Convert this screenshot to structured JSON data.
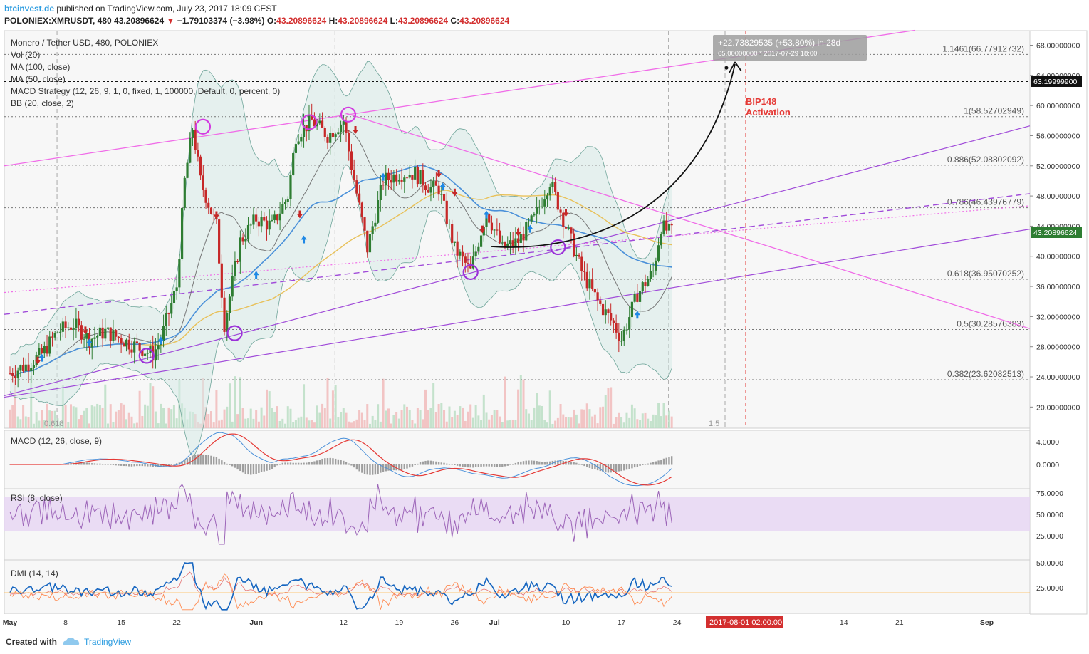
{
  "header": {
    "site": "btcinvest.de",
    "published": "published on TradingView.com, July 23, 2017 18:09 CEST",
    "symbol": "POLONIEX:XMRUSDT, 480",
    "price": "43.20896624",
    "change": "−1.79103374 (−3.98%)",
    "o_label": "O:",
    "o_value": "43.20896624",
    "h_label": "H:",
    "h_value": "43.20896624",
    "l_label": "L:",
    "l_value": "43.20896624",
    "c_label": "C:",
    "c_value": "43.20896624"
  },
  "legend": {
    "title": "Monero / Tether USD, 480, POLONIEX",
    "vol": "Vol (20)",
    "ma100": "MA (100, close)",
    "ma50": "MA (50, close)",
    "macd_strategy": "MACD Strategy (12, 26, 9, 1, 0, fixed, 1, 100000, Default, 0, percent, 0)",
    "bb": "BB (20, close, 2)"
  },
  "panels": {
    "macd_label": "MACD (12, 26, close, 9)",
    "rsi_label": "RSI (8, close)",
    "dmi_label": "DMI (14, 14)"
  },
  "annotations": {
    "measure_line1": "+22.73829535 (+53.80%) in 28d",
    "measure_line2": "65.00000000  *  2017-07-29  18:00",
    "bip148_line1": "BIP148",
    "bip148_line2": "Activation",
    "date_marker": "2017-08-01 02:00:00",
    "fib_ext_label": "1.5",
    "fib_low_label": "0.618"
  },
  "price_axis": {
    "ticks": [
      "68.00000000",
      "64.00000000",
      "60.00000000",
      "56.00000000",
      "52.00000000",
      "48.00000000",
      "44.00000000",
      "40.00000000",
      "36.00000000",
      "32.00000000",
      "28.00000000",
      "24.00000000",
      "20.00000000"
    ],
    "tick_values": [
      68,
      64,
      60,
      56,
      52,
      48,
      44,
      40,
      36,
      32,
      28,
      24,
      20
    ],
    "hline_label": "63.19999900",
    "hline_value": 63.199999,
    "last_price_label": "43.20896624",
    "last_price": 43.20896624
  },
  "fib_levels": [
    {
      "label": "1.1461(66.77912732)",
      "value": 66.77912732
    },
    {
      "label": "1(58.52702949)",
      "value": 58.52702949
    },
    {
      "label": "0.886(52.08802092)",
      "value": 52.08802092
    },
    {
      "label": "0.786(46.43976779)",
      "value": 46.43976779
    },
    {
      "label": "0.618(36.95070252)",
      "value": 36.95070252
    },
    {
      "label": "0.5(30.28576383)",
      "value": 30.28576383
    },
    {
      "label": "0.382(23.62082513)",
      "value": 23.62082513
    }
  ],
  "macd_axis": {
    "ticks": [
      "4.0000",
      "0.0000"
    ],
    "tick_values": [
      4,
      0
    ]
  },
  "rsi_axis": {
    "ticks": [
      "75.0000",
      "50.0000",
      "25.0000"
    ],
    "tick_values": [
      75,
      50,
      25
    ]
  },
  "dmi_axis": {
    "ticks": [
      "50.0000",
      "25.0000"
    ],
    "tick_values": [
      50,
      25
    ]
  },
  "time_axis": {
    "labels": [
      "May",
      "8",
      "15",
      "22",
      "Jun",
      "12",
      "19",
      "26",
      "Jul",
      "10",
      "17",
      "24",
      "14",
      "21",
      "Sep"
    ],
    "days": [
      0,
      7,
      14,
      21,
      31,
      42,
      49,
      56,
      61,
      70,
      77,
      84,
      105,
      112,
      123
    ]
  },
  "colors": {
    "up": "#26a69a",
    "up_candle": "#2e7d32",
    "down": "#c62828",
    "pink_channel": "#f06ce8",
    "purple_channel": "#a04bd9",
    "ma50": "#4a90d9",
    "ma100": "#e8c15a",
    "bb": "#6fa59a",
    "macd": "#4a90d9",
    "signal": "#e53935",
    "rsi": "#9c64b8",
    "dmi_plus": "#1565c0",
    "dmi_minus": "#ff8a50",
    "adx": "#e57373",
    "marker_red": "#d32f2f"
  },
  "chart_data": {
    "type": "line",
    "title": "Monero / Tether USD, 480, POLONIEX",
    "x_unit": "date (2017)",
    "series": [
      {
        "name": "XMRUSDT close",
        "x": [
          "2017-05-01",
          "2017-05-03",
          "2017-05-05",
          "2017-05-07",
          "2017-05-09",
          "2017-05-11",
          "2017-05-13",
          "2017-05-15",
          "2017-05-17",
          "2017-05-19",
          "2017-05-20",
          "2017-05-22",
          "2017-05-23",
          "2017-05-24",
          "2017-05-25",
          "2017-05-27",
          "2017-05-28",
          "2017-05-30",
          "2017-06-01",
          "2017-06-03",
          "2017-06-05",
          "2017-06-06",
          "2017-06-08",
          "2017-06-10",
          "2017-06-12",
          "2017-06-13",
          "2017-06-15",
          "2017-06-17",
          "2017-06-19",
          "2017-06-21",
          "2017-06-23",
          "2017-06-24",
          "2017-06-26",
          "2017-06-28",
          "2017-06-30",
          "2017-07-02",
          "2017-07-04",
          "2017-07-06",
          "2017-07-08",
          "2017-07-10",
          "2017-07-12",
          "2017-07-14",
          "2017-07-16",
          "2017-07-17",
          "2017-07-19",
          "2017-07-21",
          "2017-07-22",
          "2017-07-23"
        ],
        "values": [
          24.5,
          25.5,
          27,
          30,
          31,
          29,
          30,
          29,
          28,
          27,
          29,
          36,
          50,
          57,
          50,
          44,
          31,
          42,
          45,
          44,
          48,
          56,
          58,
          56,
          58,
          52,
          41,
          50,
          51,
          51,
          49,
          49,
          41,
          38,
          46,
          41,
          42,
          45,
          50,
          44,
          38,
          34,
          31,
          29,
          35,
          38,
          44,
          43.2
        ]
      }
    ],
    "ylim": [
      18,
      70
    ],
    "levels": {
      "hline": 63.199999,
      "target": 65.0
    }
  }
}
